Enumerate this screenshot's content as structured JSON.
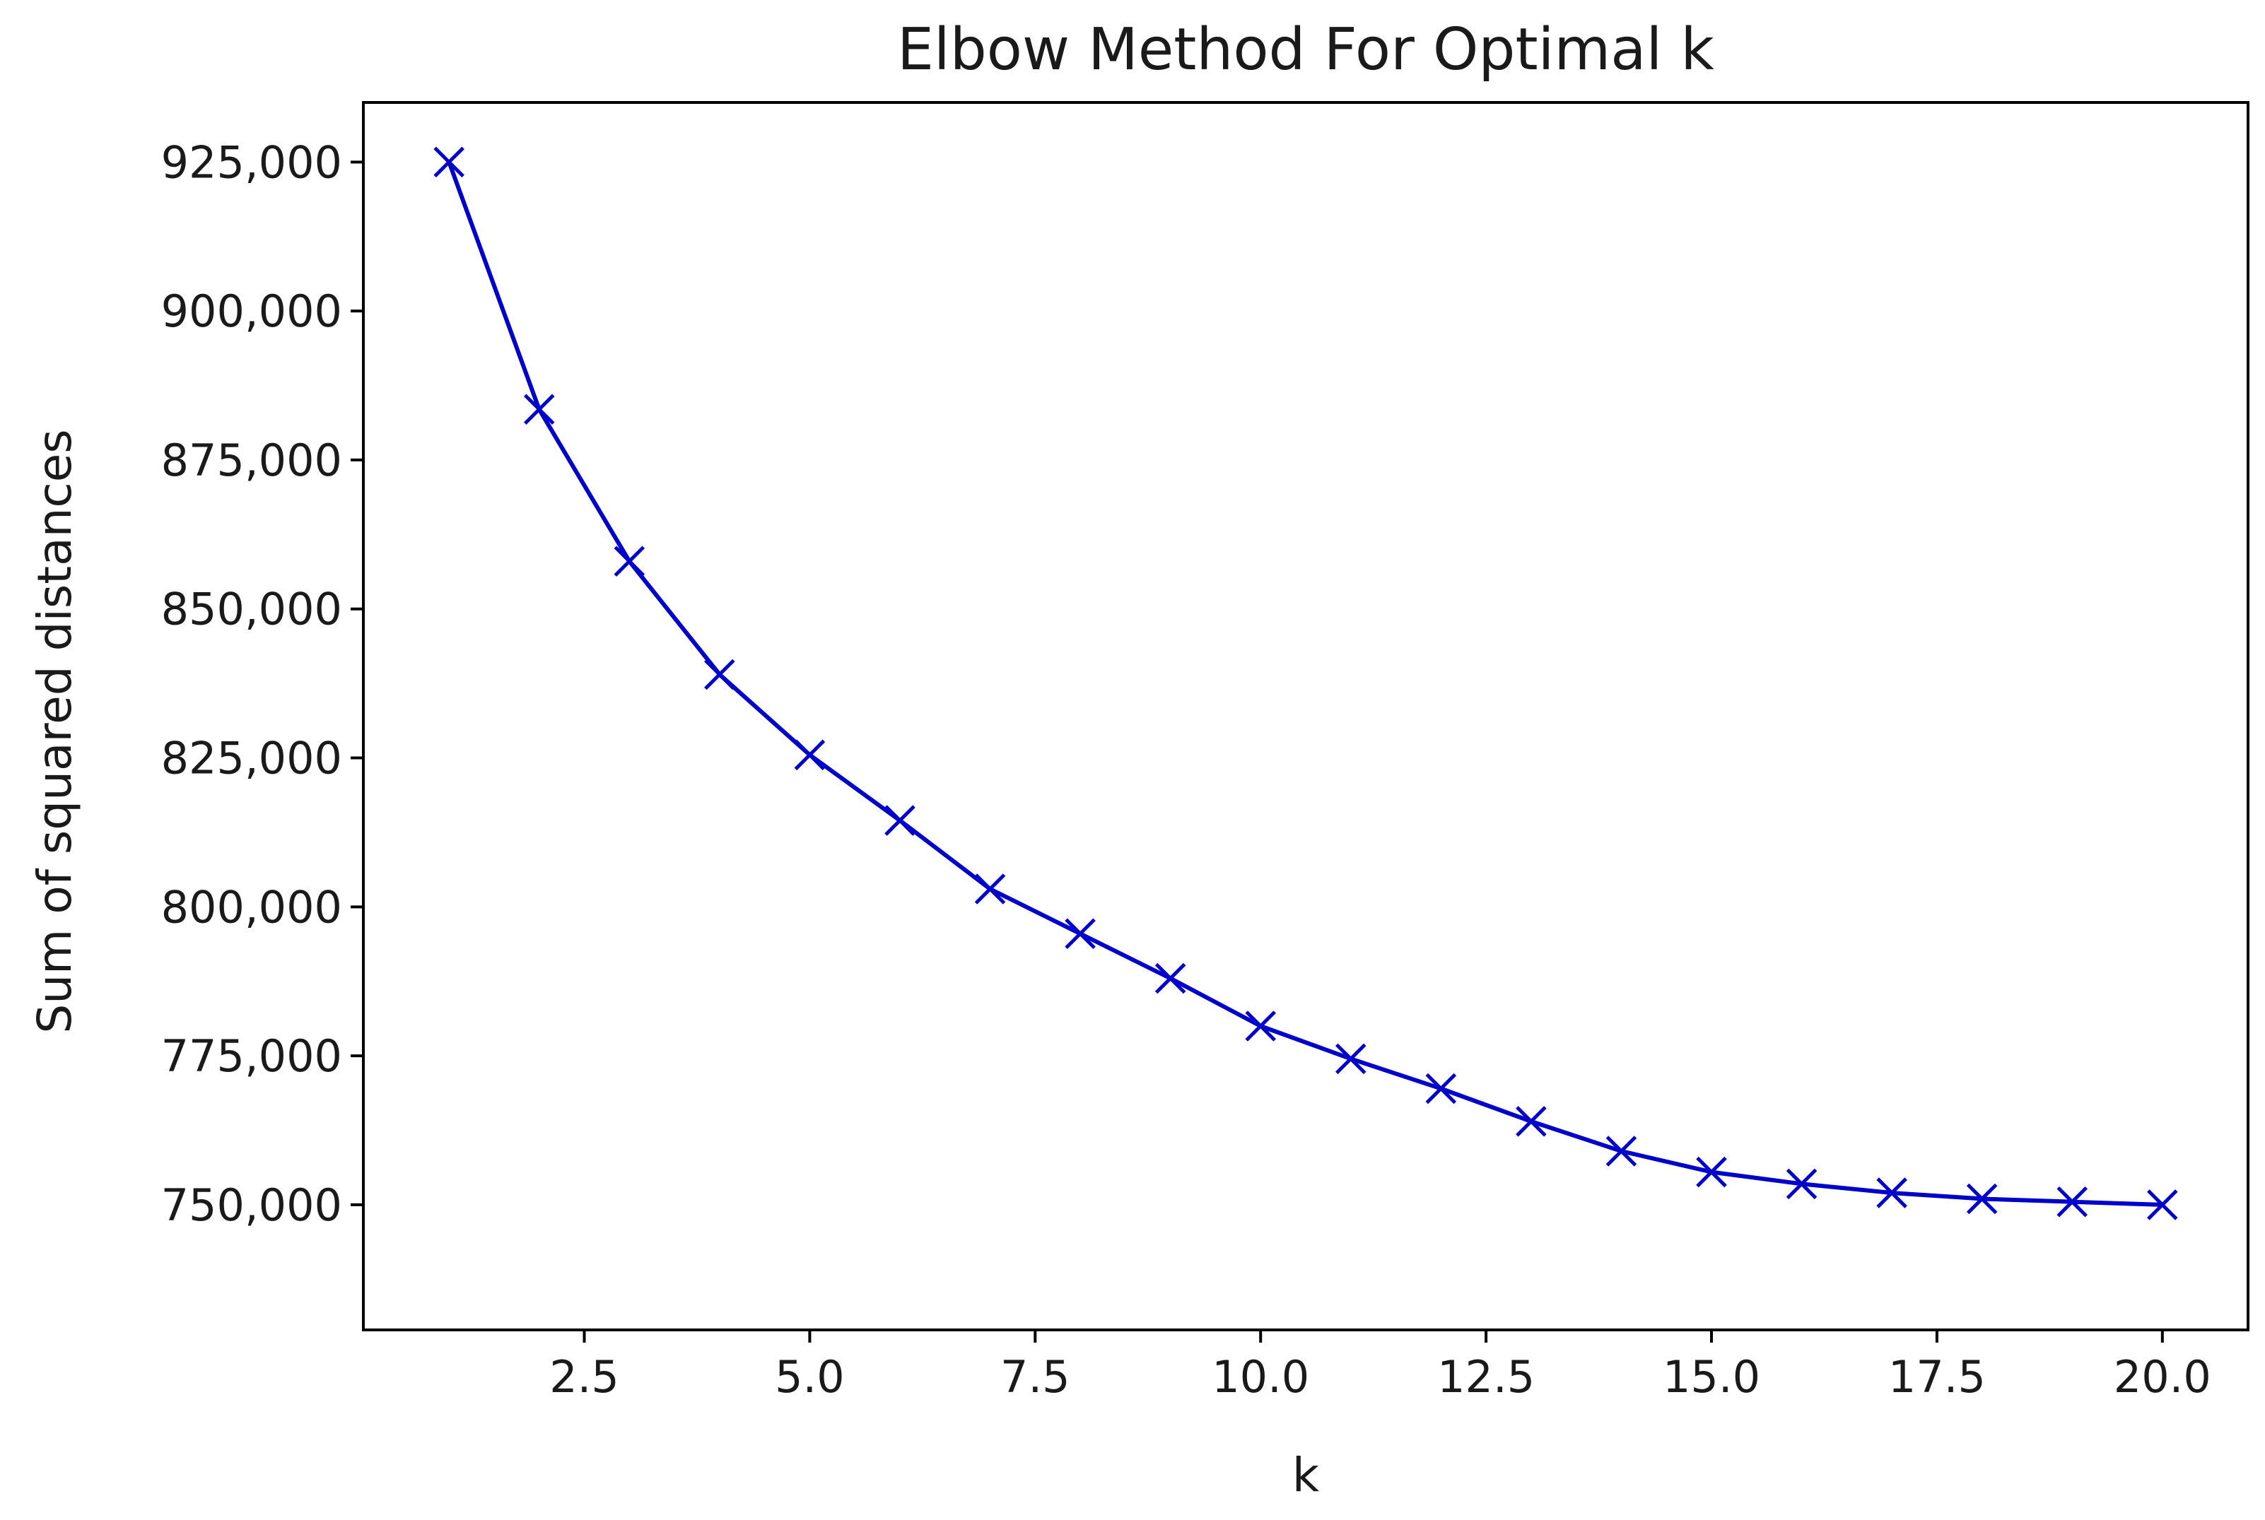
{
  "chart_data": {
    "type": "line",
    "title": "Elbow Method For Optimal k",
    "xlabel": "k",
    "ylabel": "Sum of squared distances",
    "x": [
      1,
      2,
      3,
      4,
      5,
      6,
      7,
      8,
      9,
      10,
      11,
      12,
      13,
      14,
      15,
      16,
      17,
      18,
      19,
      20
    ],
    "series": [
      {
        "values": [
          925000,
          883500,
          858000,
          839000,
          825500,
          814500,
          803000,
          795500,
          788000,
          780000,
          774500,
          769500,
          764000,
          759000,
          755500,
          753500,
          752000,
          751000,
          750500,
          750000
        ],
        "color": "#0000cc",
        "marker": "x"
      }
    ],
    "xlim": [
      0.05,
      20.95
    ],
    "ylim": [
      729000,
      935000
    ],
    "xticks": [
      2.5,
      5.0,
      7.5,
      10.0,
      12.5,
      15.0,
      17.5,
      20.0
    ],
    "xtick_labels": [
      "2.5",
      "5.0",
      "7.5",
      "10.0",
      "12.5",
      "15.0",
      "17.5",
      "20.0"
    ],
    "yticks": [
      750000,
      775000,
      800000,
      825000,
      850000,
      875000,
      900000,
      925000
    ],
    "ytick_labels": [
      "750,000",
      "775,000",
      "800,000",
      "825,000",
      "850,000",
      "875,000",
      "900,000",
      "925,000"
    ],
    "grid": false,
    "legend": "none"
  }
}
